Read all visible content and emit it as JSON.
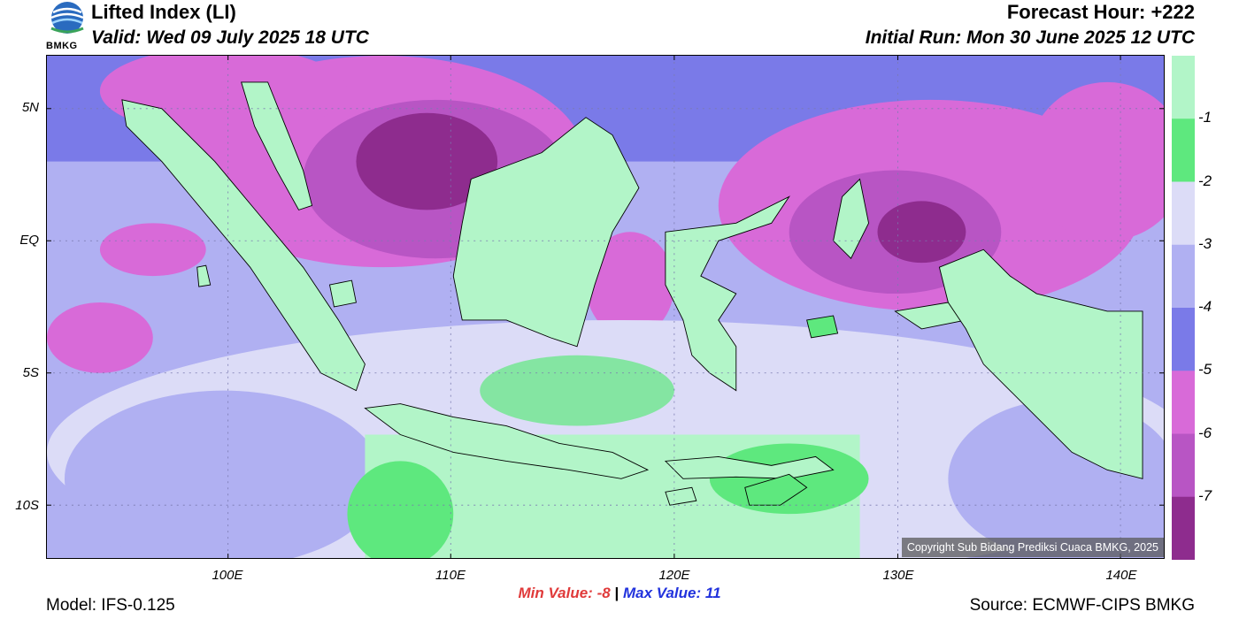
{
  "header": {
    "title": "Lifted Index (LI)",
    "valid": "Valid: Wed 09 July 2025 18 UTC",
    "forecast_hour": "Forecast Hour: +222",
    "initial_run": "Initial Run: Mon 30 June 2025 12 UTC"
  },
  "logo": {
    "text": "BMKG",
    "icon": "bmkg-logo-icon"
  },
  "map": {
    "lat_labels": [
      "5N",
      "EQ",
      "5S",
      "10S"
    ],
    "lon_labels": [
      "100E",
      "110E",
      "120E",
      "130E",
      "140E"
    ],
    "copyright": "Copyright Sub Bidang Prediksi Cuaca BMKG, 2025"
  },
  "stats": {
    "min_label": "Min Value:",
    "min_value": "-8",
    "separator": "|",
    "max_label": "Max Value:",
    "max_value": "11"
  },
  "footer": {
    "model": "Model: IFS-0.125",
    "source": "Source: ECMWF-CIPS BMKG"
  },
  "colorbar": {
    "labels": [
      "-1",
      "-2",
      "-3",
      "-4",
      "-5",
      "-6",
      "-7"
    ],
    "colors": [
      "#b2f5c8",
      "#5ee87e",
      "#dcdcf7",
      "#b0b0f2",
      "#7a7ae8",
      "#d86ad8",
      "#b855c4",
      "#8e2c8e"
    ]
  },
  "palette": {
    "green_light": "#b2f5c8",
    "green": "#5ee87e",
    "lavender": "#dcdcf7",
    "light_blue": "#b0b0f2",
    "blue": "#7a7ae8",
    "magenta": "#d86ad8",
    "purple": "#b855c4",
    "dark_purple": "#8e2c8e"
  }
}
